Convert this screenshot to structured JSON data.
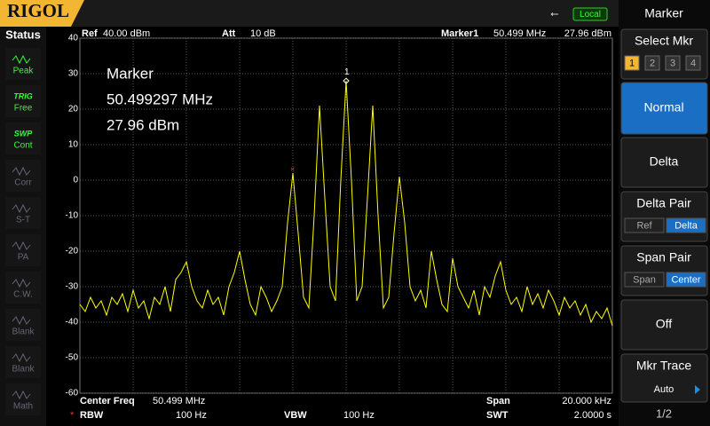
{
  "header": {
    "brand": "RIGOL",
    "mode": "Local"
  },
  "status": {
    "title": "Status",
    "items": [
      {
        "label": "Peak"
      },
      {
        "tag": "TRIG",
        "label": "Free"
      },
      {
        "tag": "SWP",
        "label": "Cont"
      },
      {
        "label": "Corr"
      },
      {
        "label": "S-T"
      },
      {
        "label": "PA"
      },
      {
        "label": "C.W."
      },
      {
        "label": "Blank"
      },
      {
        "label": "Blank"
      },
      {
        "label": "Math"
      }
    ]
  },
  "info": {
    "ref": "Ref",
    "ref_value": "40.00 dBm",
    "att": "Att",
    "att_value": "10 dB",
    "marker": "Marker1",
    "marker_freq": "50.499 MHz",
    "marker_amp": "27.96 dBm"
  },
  "footer": {
    "center_label": "Center Freq",
    "center_value": "50.499 MHz",
    "span_label": "Span",
    "span_value": "20.000 kHz",
    "rbw_label": "RBW",
    "rbw_value": "100 Hz",
    "vbw_label": "VBW",
    "vbw_value": "100 Hz",
    "swt_label": "SWT",
    "swt_value": "2.0000 s"
  },
  "chart_data": {
    "type": "line",
    "annotations": [
      "Marker",
      "50.499297 MHz",
      "27.96 dBm"
    ],
    "marker_label": "1",
    "color": "#ffff00",
    "grid": true,
    "xlim": [
      50.489,
      50.509
    ],
    "ylim": [
      -60,
      40
    ],
    "yticks": [
      40,
      30,
      20,
      10,
      0,
      -10,
      -20,
      -30,
      -40,
      -50,
      -60
    ],
    "x": [
      50.489,
      50.4892,
      50.4894,
      50.4896,
      50.4898,
      50.49,
      50.4902,
      50.4904,
      50.4906,
      50.4908,
      50.491,
      50.4912,
      50.4914,
      50.4916,
      50.4918,
      50.492,
      50.4922,
      50.4924,
      50.4926,
      50.4928,
      50.493,
      50.4932,
      50.4934,
      50.4936,
      50.4938,
      50.494,
      50.4942,
      50.4944,
      50.4946,
      50.4948,
      50.495,
      50.4952,
      50.4954,
      50.4956,
      50.4958,
      50.496,
      50.4962,
      50.4964,
      50.4966,
      50.4968,
      50.497,
      50.4972,
      50.4974,
      50.4976,
      50.4978,
      50.498,
      50.4982,
      50.4984,
      50.4986,
      50.4988,
      50.499,
      50.4992,
      50.4994,
      50.4996,
      50.4998,
      50.5,
      50.5002,
      50.5004,
      50.5006,
      50.5008,
      50.501,
      50.5012,
      50.5014,
      50.5016,
      50.5018,
      50.502,
      50.5022,
      50.5024,
      50.5026,
      50.5028,
      50.503,
      50.5032,
      50.5034,
      50.5036,
      50.5038,
      50.504,
      50.5042,
      50.5044,
      50.5046,
      50.5048,
      50.505,
      50.5052,
      50.5054,
      50.5056,
      50.5058,
      50.506,
      50.5062,
      50.5064,
      50.5066,
      50.5068,
      50.507,
      50.5072,
      50.5074,
      50.5076,
      50.5078,
      50.508,
      50.5082,
      50.5084,
      50.5086,
      50.5088,
      50.509
    ],
    "values": [
      -35,
      -37,
      -33,
      -36,
      -34,
      -38,
      -33,
      -35,
      -32,
      -37,
      -31,
      -36,
      -34,
      -39,
      -33,
      -35,
      -30,
      -37,
      -28,
      -26,
      -23,
      -30,
      -34,
      -36,
      -31,
      -35,
      -33,
      -38,
      -30,
      -26,
      -20,
      -28,
      -35,
      -38,
      -30,
      -33,
      -37,
      -34,
      -30,
      -12,
      2,
      -15,
      -33,
      -36,
      -10,
      21,
      -5,
      -30,
      -34,
      0,
      27.96,
      0,
      -34,
      -30,
      -5,
      21,
      -10,
      -36,
      -33,
      -15,
      1,
      -12,
      -30,
      -34,
      -31,
      -36,
      -20,
      -28,
      -35,
      -37,
      -22,
      -30,
      -33,
      -36,
      -31,
      -38,
      -30,
      -33,
      -27,
      -23,
      -31,
      -35,
      -33,
      -37,
      -30,
      -35,
      -32,
      -36,
      -31,
      -34,
      -38,
      -33,
      -36,
      -34,
      -38,
      -35,
      -40,
      -37,
      -39,
      -36,
      -41
    ]
  },
  "menu": {
    "title": "Marker",
    "buttons": [
      {
        "label": "Select Mkr",
        "options": [
          "1",
          "2",
          "3",
          "4"
        ]
      },
      {
        "label": "Normal"
      },
      {
        "label": "Delta"
      },
      {
        "label": "Delta Pair",
        "options": [
          "Ref",
          "Delta"
        ]
      },
      {
        "label": "Span Pair",
        "options": [
          "Span",
          "Center"
        ]
      },
      {
        "label": "Off"
      },
      {
        "label": "Mkr Trace",
        "options": [
          "Auto"
        ]
      }
    ],
    "page": "1/2"
  }
}
